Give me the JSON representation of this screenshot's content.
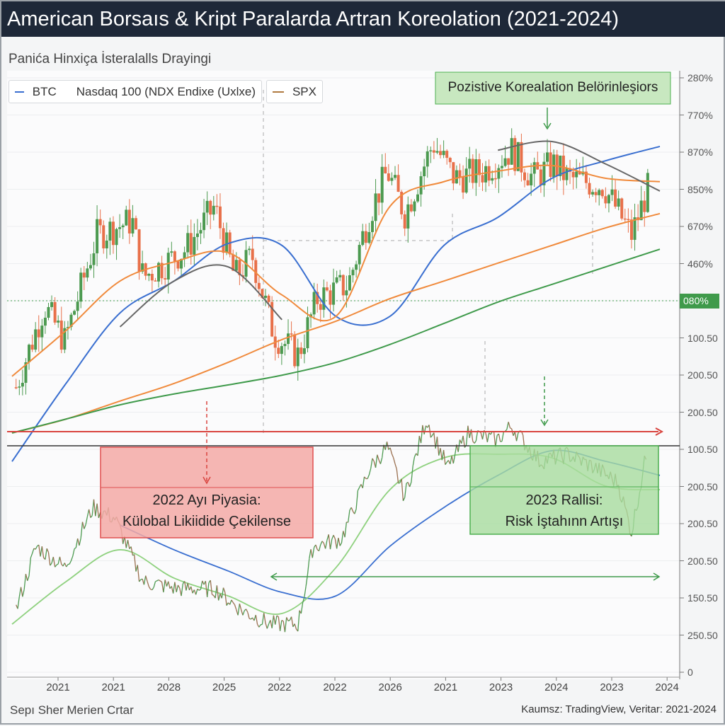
{
  "title": "American Borsaıs & Kript Paralarda Artran Koreolation (2021-2024)",
  "subtitle": "Panića Hinxiça İsteralalls Drayingi",
  "legend": {
    "btc": "BTC",
    "ndx": "Nasdaq 100 (NDX Endixe (Uxlxe)",
    "spx": "SPX"
  },
  "colors": {
    "btc": "#3a6fd0",
    "spx": "#f08a3c",
    "green": "#3f9a4b",
    "lightgreen": "#8fd17f",
    "red": "#d9443f",
    "grey": "#666666",
    "up": "#4c9a50",
    "down": "#e8704a",
    "brown": "#9a7050"
  },
  "annotations": {
    "top": "Pozistive Korealation Belörinleşiors",
    "bear_line1": "2022 Ayı Piyasia:",
    "bear_line2": "Külobal Likiidide Çekilense",
    "rally_line1": "2023 Rallisi:",
    "rally_line2": "Risk İştahınn Artışı"
  },
  "badge": "080%",
  "footer": {
    "left": "Sepı Sher Merien Crtar",
    "right": "Kaumsz: TradingView, Veritar: 2021-2024"
  },
  "chart_data": {
    "type": "line",
    "title": "American Borsaıs & Kript Paralarda Artran Koreolation (2021-2024)",
    "y_ticks": [
      "280%",
      "770%",
      "870%",
      "850%",
      "670%",
      "460%",
      "080%",
      "100.50",
      "200.50",
      "200.50",
      "100.50",
      "200.50",
      "200.50",
      "200.50",
      "150.50",
      "250.50",
      "0"
    ],
    "x_ticks": [
      "2021",
      "2021",
      "2028",
      "2025",
      "2022",
      "2022",
      "2026",
      "2021",
      "2023",
      "2024",
      "2023",
      "2024"
    ],
    "x_range_months": [
      0,
      48
    ],
    "upper_range": [
      0,
      100
    ],
    "lower_range": [
      0,
      100
    ],
    "sample_months": [
      0,
      4,
      8,
      12,
      16,
      20,
      24,
      28,
      32,
      36,
      40,
      44,
      48
    ],
    "upper_candles_keyframes": [
      [
        0.3,
        16
      ],
      [
        2.4,
        37.7
      ],
      [
        3.9,
        28.3
      ],
      [
        6.3,
        56.6
      ],
      [
        8.9,
        60.4
      ],
      [
        9.7,
        45.3
      ],
      [
        12.9,
        52.8
      ],
      [
        15,
        64.2
      ],
      [
        16.5,
        45.3
      ],
      [
        17.8,
        50.9
      ],
      [
        19.4,
        30.2
      ],
      [
        21.2,
        24.5
      ],
      [
        22.6,
        39.6
      ],
      [
        24.9,
        43.4
      ],
      [
        26.5,
        62.3
      ],
      [
        27.8,
        73.6
      ],
      [
        29.1,
        62.3
      ],
      [
        31.2,
        81.1
      ],
      [
        32.8,
        71.7
      ],
      [
        34.9,
        73.6
      ],
      [
        37,
        79.2
      ],
      [
        38.6,
        71.7
      ],
      [
        40.1,
        75.5
      ],
      [
        41.2,
        71.7
      ],
      [
        43.8,
        69.8
      ],
      [
        45.9,
        56.6
      ],
      [
        47.2,
        69.8
      ]
    ],
    "upper_series": [
      {
        "name": "BTC MA",
        "color": "#3a6fd0",
        "values": [
          -3.8,
          17,
          35.8,
          44.3,
          54.3,
          53.8,
          34.9,
          34.9,
          53.8,
          61.3,
          71.7,
          76.4,
          80.2
        ]
      },
      {
        "name": "SPX MA",
        "color": "#f08a3c",
        "values": [
          18.9,
          31.1,
          44.3,
          49.4,
          51.9,
          40.6,
          34.9,
          64.2,
          70.8,
          73.6,
          75.1,
          71.7,
          70.8
        ]
      },
      {
        "name": "Grey MA",
        "color": "#666666",
        "values": [
          null,
          null,
          32.1,
          44.3,
          48.1,
          34,
          null,
          null,
          null,
          79.2,
          81.5,
          75.5,
          68.3
        ]
      },
      {
        "name": "SPX long trend",
        "color": "#f08a3c",
        "values": [
          3.8,
          7.5,
          12.3,
          17,
          22.6,
          28.7,
          33.6,
          39.6,
          44.3,
          49.1,
          53.8,
          58.5,
          62.3
        ]
      },
      {
        "name": "Long trend",
        "color": "#3f9a4b",
        "values": [
          3.8,
          7.5,
          11.3,
          14.2,
          16.6,
          19.2,
          22.6,
          27.4,
          33,
          38.7,
          43.4,
          48.1,
          52.8
        ]
      }
    ],
    "lower_price_keyframes": [
      [
        0.3,
        27.8
      ],
      [
        1.8,
        52.8
      ],
      [
        3.9,
        44.4
      ],
      [
        6,
        68
      ],
      [
        7.6,
        63.9
      ],
      [
        9.7,
        38.9
      ],
      [
        12.3,
        36.1
      ],
      [
        15,
        36.1
      ],
      [
        17,
        27.8
      ],
      [
        19.1,
        22.2
      ],
      [
        21.2,
        22.2
      ],
      [
        22.3,
        52.8
      ],
      [
        24.4,
        55.6
      ],
      [
        26.5,
        83.3
      ],
      [
        27.8,
        91.7
      ],
      [
        29.1,
        72.2
      ],
      [
        30.7,
        102.8
      ],
      [
        32.3,
        83.3
      ],
      [
        33.8,
        97.2
      ],
      [
        35.9,
        94.4
      ],
      [
        37,
        100
      ],
      [
        39.1,
        86.1
      ],
      [
        41.2,
        88.9
      ],
      [
        43.3,
        83.3
      ],
      [
        44.9,
        77.8
      ],
      [
        45.9,
        58.3
      ],
      [
        47,
        88.9
      ]
    ],
    "lower_series": [
      {
        "name": "Lower blue",
        "color": "#3a6fd0",
        "values": [
          null,
          null,
          61.1,
          51.4,
          43.1,
          34.7,
          33.3,
          52.8,
          68,
          80.6,
          90.3,
          86.1,
          80.6
        ]
      },
      {
        "name": "Lower MA",
        "color": "#8fd17f",
        "values": [
          22.2,
          38.9,
          51.4,
          40.3,
          33.3,
          26.4,
          44.4,
          75,
          87.5,
          88.9,
          87.5,
          76.4,
          75
        ]
      }
    ]
  }
}
